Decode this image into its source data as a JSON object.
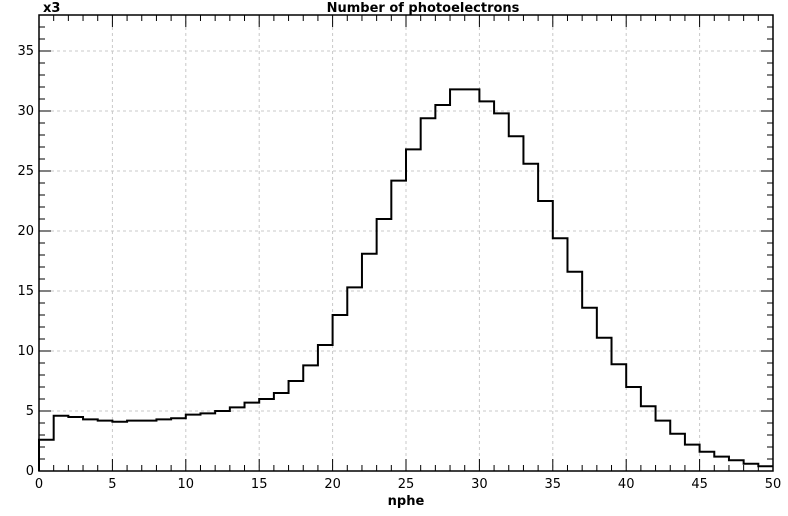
{
  "chart_data": {
    "type": "bar",
    "title": "Number of photoelectrons",
    "xlabel": "nphe",
    "ylabel": "",
    "y_multiplier": "x3",
    "xlim": [
      0,
      50
    ],
    "ylim": [
      0,
      38
    ],
    "x_ticks": [
      0,
      5,
      10,
      15,
      20,
      25,
      30,
      35,
      40,
      45,
      50
    ],
    "y_ticks": [
      0,
      5,
      10,
      15,
      20,
      25,
      30,
      35
    ],
    "grid": true,
    "bin_width": 1,
    "bin_edges_start": 0,
    "values": [
      2.6,
      4.6,
      4.5,
      4.3,
      4.2,
      4.1,
      4.2,
      4.2,
      4.3,
      4.4,
      4.7,
      4.8,
      5.0,
      5.3,
      5.7,
      6.0,
      6.5,
      7.5,
      8.8,
      10.5,
      13.0,
      15.3,
      18.1,
      21.0,
      24.2,
      26.8,
      29.4,
      30.5,
      31.8,
      31.8,
      30.8,
      29.8,
      27.9,
      25.6,
      22.5,
      19.4,
      16.6,
      13.6,
      11.1,
      8.9,
      7.0,
      5.4,
      4.2,
      3.1,
      2.2,
      1.6,
      1.2,
      0.9,
      0.6,
      0.4
    ],
    "line_color": "#000000"
  }
}
